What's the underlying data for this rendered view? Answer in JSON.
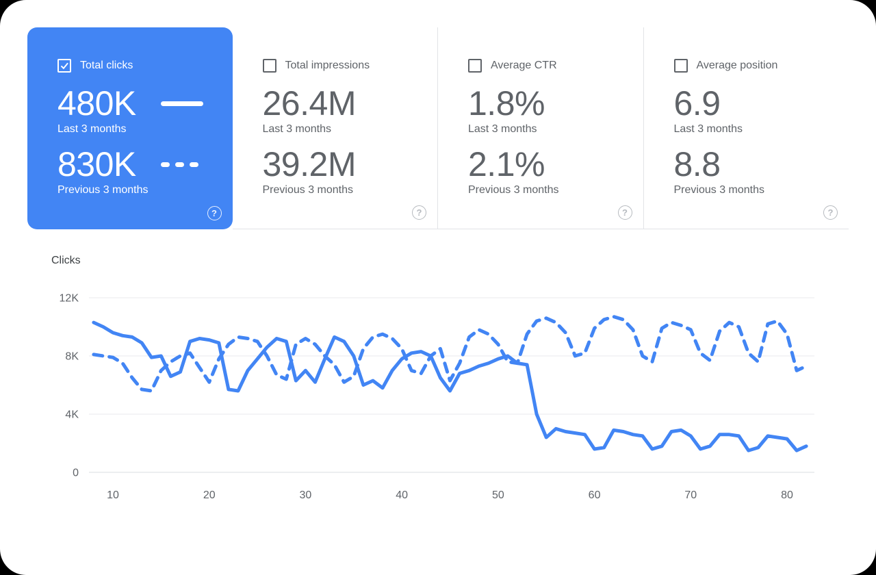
{
  "ui": {
    "help_glyph": "?"
  },
  "colors": {
    "accent": "#4285f4",
    "selected_card_bg": "#4285f4",
    "selected_card_text": "#ffffff",
    "muted_text": "#5f6368",
    "divider": "#e1e3e6",
    "gridline": "#e8eaed"
  },
  "cards": [
    {
      "label": "Total clicks",
      "checked": true,
      "selected": true,
      "primary_value": "480K",
      "primary_caption": "Last 3 months",
      "secondary_value": "830K",
      "secondary_caption": "Previous 3 months"
    },
    {
      "label": "Total impressions",
      "checked": false,
      "selected": false,
      "primary_value": "26.4M",
      "primary_caption": "Last 3 months",
      "secondary_value": "39.2M",
      "secondary_caption": "Previous 3 months"
    },
    {
      "label": "Average CTR",
      "checked": false,
      "selected": false,
      "primary_value": "1.8%",
      "primary_caption": "Last 3 months",
      "secondary_value": "2.1%",
      "secondary_caption": "Previous 3 months"
    },
    {
      "label": "Average position",
      "checked": false,
      "selected": false,
      "primary_value": "6.9",
      "primary_caption": "Last 3 months",
      "secondary_value": "8.8",
      "secondary_caption": "Previous 3 months"
    }
  ],
  "chart_data": {
    "type": "line",
    "title": "Clicks",
    "xlabel": "",
    "ylabel": "Clicks",
    "xticks": [
      10,
      20,
      30,
      40,
      50,
      60,
      70,
      80
    ],
    "yticks": [
      "0",
      "4K",
      "8K",
      "12K"
    ],
    "ytick_values": [
      0,
      4,
      8,
      12
    ],
    "ylim": [
      0,
      12
    ],
    "grid": "horizontal",
    "legend_position": "in-card",
    "colors": {
      "line": "#4285f4"
    },
    "x": [
      8,
      9,
      10,
      11,
      12,
      13,
      14,
      15,
      16,
      17,
      18,
      19,
      20,
      21,
      22,
      23,
      24,
      25,
      26,
      27,
      28,
      29,
      30,
      31,
      32,
      33,
      34,
      35,
      36,
      37,
      38,
      39,
      40,
      41,
      42,
      43,
      44,
      45,
      46,
      47,
      48,
      49,
      50,
      51,
      52,
      53,
      54,
      55,
      56,
      57,
      58,
      59,
      60,
      61,
      62,
      63,
      64,
      65,
      66,
      67,
      68,
      69,
      70,
      71,
      72,
      73,
      74,
      75,
      76,
      77,
      78,
      79,
      80,
      81,
      82
    ],
    "series": [
      {
        "name": "Last 3 months",
        "style": "solid",
        "unit": "K clicks",
        "values": [
          10.3,
          10.0,
          9.6,
          9.4,
          9.3,
          8.9,
          7.9,
          8.0,
          6.6,
          6.9,
          9.0,
          9.2,
          9.1,
          8.9,
          5.7,
          5.6,
          7.0,
          7.8,
          8.6,
          9.2,
          9.0,
          6.3,
          7.0,
          6.2,
          7.8,
          9.3,
          9.0,
          8.0,
          6.0,
          6.3,
          5.8,
          7.0,
          7.8,
          8.2,
          8.3,
          8.0,
          6.5,
          5.6,
          6.8,
          7.0,
          7.3,
          7.5,
          7.8,
          8.0,
          7.5,
          7.4,
          4.0,
          2.4,
          3.0,
          2.8,
          2.7,
          2.6,
          1.6,
          1.7,
          2.9,
          2.8,
          2.6,
          2.5,
          1.6,
          1.8,
          2.8,
          2.9,
          2.5,
          1.6,
          1.8,
          2.6,
          2.6,
          2.5,
          1.5,
          1.7,
          2.5,
          2.4,
          2.3,
          1.5,
          1.8
        ]
      },
      {
        "name": "Previous 3 months",
        "style": "dashed",
        "unit": "K clicks",
        "values": [
          8.1,
          8.0,
          7.9,
          7.5,
          6.5,
          5.7,
          5.6,
          7.0,
          7.6,
          8.0,
          8.2,
          7.2,
          6.2,
          7.8,
          8.8,
          9.3,
          9.2,
          9.0,
          8.0,
          6.7,
          6.4,
          8.8,
          9.2,
          8.8,
          8.0,
          7.4,
          6.2,
          6.6,
          8.5,
          9.3,
          9.5,
          9.2,
          8.5,
          7.0,
          6.8,
          8.0,
          8.5,
          6.3,
          7.5,
          9.3,
          9.8,
          9.5,
          8.8,
          7.6,
          7.5,
          9.5,
          10.4,
          10.6,
          10.3,
          9.6,
          8.0,
          8.2,
          9.9,
          10.5,
          10.7,
          10.5,
          9.8,
          8.0,
          7.6,
          9.9,
          10.3,
          10.1,
          9.8,
          8.2,
          7.7,
          9.7,
          10.3,
          10.0,
          8.2,
          7.6,
          10.2,
          10.4,
          9.5,
          7.0,
          7.3
        ]
      }
    ]
  }
}
